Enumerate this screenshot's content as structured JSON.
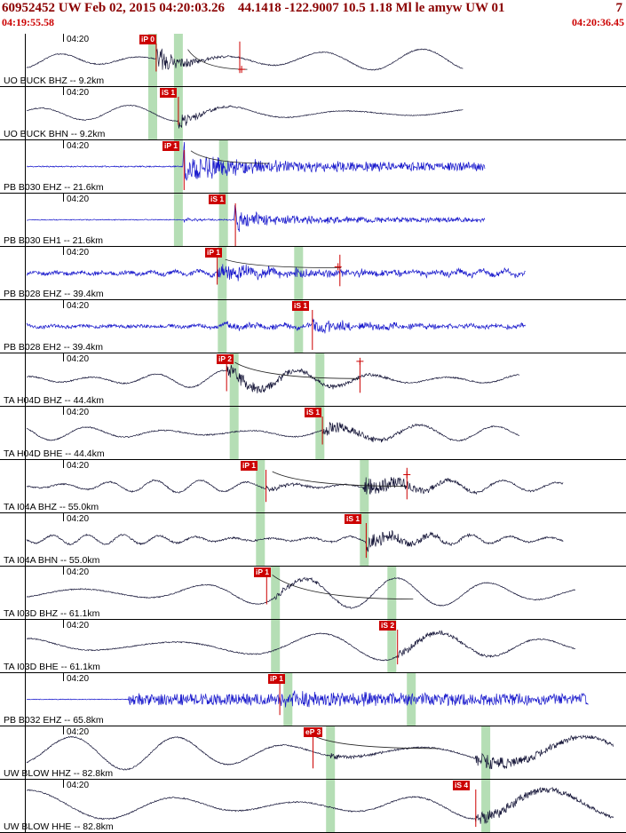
{
  "header": {
    "title": "60952452 UW Feb 02, 2015 04:20:03.26    44.1418 -122.9007 10.5 1.18 Ml le amyw UW 01",
    "right_label": "7",
    "window_start": "04:19:55.58",
    "window_end": "04:20:36.45"
  },
  "tick_label": "04:20",
  "colors": {
    "header_text": "#8b0000",
    "window_time_text": "#cc0000",
    "pick": "#cc0000",
    "band": "#a8d8a8",
    "blue_trace": "#1818cc",
    "dark_trace": "#151538"
  },
  "traces": [
    {
      "label": "UO BUCK BHZ -- 9.2km",
      "color": "dark",
      "seed": 3,
      "end": 0.74,
      "bands": [
        0.244,
        0.285
      ],
      "picks": [
        {
          "label": "iP 0",
          "x": 0.222,
          "line_x": 0.2495
        }
      ],
      "aux_line": 0.383,
      "cross": {
        "x": 0.386,
        "y": 0.68
      },
      "decay": {
        "x1": 0.3,
        "y1": 0.3,
        "x2": 0.395,
        "y2": 0.68
      },
      "wave": {
        "base": {
          "amp": 12,
          "cycles": 7,
          "mod": 1.2
        },
        "noise": 0.6,
        "bursts": [
          {
            "t": 0.2495,
            "amp": 15,
            "tau": 30
          }
        ]
      }
    },
    {
      "label": "UO BUCK BHN -- 9.2km",
      "color": "dark",
      "seed": 7,
      "end": 0.74,
      "bands": [
        0.244,
        0.285
      ],
      "picks": [
        {
          "label": "iS 1",
          "x": 0.256,
          "line_x": 0.285
        }
      ],
      "wave": {
        "base": {
          "amp": 9,
          "cycles": 6,
          "mod": 1.3
        },
        "noise": 0.5,
        "bursts": [
          {
            "t": 0.285,
            "amp": 10,
            "tau": 25
          }
        ]
      }
    },
    {
      "label": "PB B030 EHZ -- 21.6km",
      "color": "blue",
      "seed": 11,
      "end": 0.775,
      "bands": [
        0.285,
        0.357
      ],
      "picks": [
        {
          "label": "iP 1",
          "x": 0.26,
          "line_x": 0.294,
          "y2": 0.95
        }
      ],
      "decay": {
        "x1": 0.305,
        "y1": 0.2,
        "x2": 0.43,
        "y2": 0.44
      },
      "wave": {
        "noise": 0.7,
        "spikes": [
          {
            "t": 0.294,
            "amp": 26
          },
          {
            "t": 0.299,
            "amp": -22
          }
        ],
        "bursts": [
          {
            "t": 0.294,
            "amp": 14,
            "tau": 90
          }
        ],
        "sustain": [
          {
            "t": 0.3,
            "amp": 4.5
          }
        ]
      }
    },
    {
      "label": "PB B030 EH1 -- 21.6km",
      "color": "blue",
      "seed": 13,
      "end": 0.775,
      "bands": [
        0.285,
        0.357
      ],
      "picks": [
        {
          "label": "iS 1",
          "x": 0.333,
          "line_x": 0.376,
          "y2": 1.0
        }
      ],
      "wave": {
        "noise": 0.5,
        "spikes": [
          {
            "t": 0.376,
            "amp": 24
          },
          {
            "t": 0.381,
            "amp": -20
          }
        ],
        "bursts": [
          {
            "t": 0.294,
            "amp": 2.5,
            "tau": 30
          },
          {
            "t": 0.376,
            "amp": 9,
            "tau": 70
          }
        ],
        "sustain": [
          {
            "t": 0.38,
            "amp": 2.5
          }
        ]
      }
    },
    {
      "label": "PB B028 EHZ -- 39.4km",
      "color": "blue",
      "seed": 17,
      "end": 0.84,
      "bands": [
        0.355,
        0.477
      ],
      "picks": [
        {
          "label": "iP 1",
          "x": 0.328,
          "line_x": 0.347
        }
      ],
      "aux_line": 0.543,
      "cross": {
        "x": 0.54,
        "y": 0.38
      },
      "decay": {
        "x1": 0.36,
        "y1": 0.24,
        "x2": 0.545,
        "y2": 0.4
      },
      "wave": {
        "base": {
          "amp": 2.5,
          "cycles": 26,
          "mod": 2.2
        },
        "noise": 2.2,
        "bursts": [
          {
            "t": 0.347,
            "amp": 8,
            "tau": 90
          },
          {
            "t": 0.477,
            "amp": 4,
            "tau": 60
          }
        ],
        "sustain": [
          {
            "t": 0.35,
            "amp": 2
          }
        ]
      }
    },
    {
      "label": "PB B028 EH2 -- 39.4km",
      "color": "blue",
      "seed": 19,
      "end": 0.84,
      "bands": [
        0.355,
        0.477
      ],
      "picks": [
        {
          "label": "iS 1",
          "x": 0.466,
          "line_x": 0.499,
          "y2": 0.95
        }
      ],
      "wave": {
        "base": {
          "amp": 2,
          "cycles": 22,
          "mod": 2.0
        },
        "noise": 1.8,
        "bursts": [
          {
            "t": 0.355,
            "amp": 4,
            "tau": 50
          },
          {
            "t": 0.499,
            "amp": 8,
            "tau": 70
          }
        ],
        "sustain": [
          {
            "t": 0.36,
            "amp": 1.5
          }
        ]
      }
    },
    {
      "label": "TA H04D BHZ -- 44.4km",
      "color": "dark",
      "seed": 23,
      "end": 0.83,
      "bands": [
        0.374,
        0.511
      ],
      "picks": [
        {
          "label": "iP 2",
          "x": 0.346,
          "line_x": 0.362
        }
      ],
      "aux_line": 0.575,
      "cross": {
        "x": 0.575,
        "y": 0.15
      },
      "decay": {
        "x1": 0.375,
        "y1": 0.17,
        "x2": 0.575,
        "y2": 0.48
      },
      "wave": {
        "base": {
          "amp": 11,
          "cycles": 9,
          "mod": 1.6
        },
        "noise": 0.7,
        "bursts": [
          {
            "t": 0.362,
            "amp": 8,
            "tau": 60
          }
        ],
        "sustain": [
          {
            "t": 0.362,
            "amp": 1.5,
            "t2": 0.62
          }
        ]
      }
    },
    {
      "label": "TA H04D BHE -- 44.4km",
      "color": "dark",
      "seed": 29,
      "end": 0.83,
      "bands": [
        0.374,
        0.511
      ],
      "picks": [
        {
          "label": "iS 1",
          "x": 0.487,
          "line_x": 0.515
        }
      ],
      "wave": {
        "base": {
          "amp": 9,
          "cycles": 8,
          "mod": 1.4
        },
        "noise": 0.7,
        "bursts": [
          {
            "t": 0.515,
            "amp": 8,
            "tau": 55
          }
        ]
      }
    },
    {
      "label": "TA I04A BHZ -- 55.0km",
      "color": "dark",
      "seed": 31,
      "end": 0.9,
      "bands": [
        0.416,
        0.582
      ],
      "picks": [
        {
          "label": "iP 1",
          "x": 0.384,
          "line_x": 0.425,
          "y2": 0.8
        }
      ],
      "aux_line": 0.65,
      "cross": {
        "x": 0.65,
        "y": 0.28
      },
      "decay": {
        "x1": 0.435,
        "y1": 0.22,
        "x2": 0.648,
        "y2": 0.5
      },
      "wave": {
        "base": {
          "amp": 7,
          "cycles": 12,
          "mod": 2.0
        },
        "noise": 0.8,
        "bursts": [
          {
            "t": 0.425,
            "amp": 3,
            "tau": 40
          },
          {
            "t": 0.58,
            "amp": 13,
            "tau": 55
          }
        ]
      }
    },
    {
      "label": "TA I04A BHN -- 55.0km",
      "color": "dark",
      "seed": 37,
      "end": 0.9,
      "bands": [
        0.416,
        0.582
      ],
      "picks": [
        {
          "label": "iS 1",
          "x": 0.551,
          "line_x": 0.585,
          "y2": 0.85
        }
      ],
      "wave": {
        "base": {
          "amp": 5.5,
          "cycles": 16,
          "mod": 1.8
        },
        "noise": 1.0,
        "bursts": [
          {
            "t": 0.585,
            "amp": 11,
            "tau": 50
          }
        ]
      }
    },
    {
      "label": "TA I03D BHZ -- 61.1km",
      "color": "dark",
      "seed": 41,
      "end": 0.92,
      "bands": [
        0.44,
        0.626
      ],
      "picks": [
        {
          "label": "iP 1",
          "x": 0.406,
          "line_x": 0.426
        }
      ],
      "decay": {
        "x1": 0.435,
        "y1": 0.16,
        "x2": 0.66,
        "y2": 0.62
      },
      "wave": {
        "base": {
          "amp": 17,
          "cycles": 5.5,
          "mod": 1.1
        },
        "noise": 0.6,
        "bursts": [
          {
            "t": 0.44,
            "amp": 4,
            "tau": 50
          }
        ]
      }
    },
    {
      "label": "TA I03D BHE -- 61.1km",
      "color": "dark",
      "seed": 43,
      "end": 0.92,
      "bands": [
        0.44,
        0.626
      ],
      "picks": [
        {
          "label": "iS 2",
          "x": 0.605,
          "line_x": 0.635,
          "y2": 0.85
        }
      ],
      "wave": {
        "base": {
          "amp": 16,
          "cycles": 5,
          "mod": 1.2
        },
        "noise": 0.6,
        "bursts": [
          {
            "t": 0.635,
            "amp": 5,
            "tau": 60
          }
        ]
      }
    },
    {
      "label": "PB B032 EHZ -- 65.8km",
      "color": "blue",
      "seed": 47,
      "end": 0.94,
      "bands": [
        0.46,
        0.657
      ],
      "picks": [
        {
          "label": "iP 1",
          "x": 0.428,
          "line_x": 0.447,
          "y2": 0.8
        }
      ],
      "wave": {
        "noise": 0.4,
        "sustain": [
          {
            "t": 0.205,
            "amp": 6.5
          }
        ],
        "bursts": [
          {
            "t": 0.447,
            "amp": 5,
            "tau": 120
          }
        ]
      }
    },
    {
      "label": "UW BLOW HHZ -- 82.8km",
      "color": "dark",
      "seed": 53,
      "end": 0.98,
      "bands": [
        0.528,
        0.776
      ],
      "picks": [
        {
          "label": "eP 3",
          "x": 0.485,
          "line_x": 0.5,
          "y2": 0.8
        }
      ],
      "decay": {
        "x1": 0.505,
        "y1": 0.2,
        "x2": 0.7,
        "y2": 0.42
      },
      "wave": {
        "base": {
          "amp": 19,
          "cycles": 4.6,
          "mod": 1.2
        },
        "noise": 0.7,
        "bursts": [
          {
            "t": 0.528,
            "amp": 3,
            "tau": 40
          },
          {
            "t": 0.76,
            "amp": 9,
            "tau": 90
          }
        ]
      }
    },
    {
      "label": "UW BLOW HHE -- 82.8km",
      "color": "dark",
      "seed": 59,
      "end": 0.98,
      "bands": [
        0.528,
        0.776
      ],
      "picks": [
        {
          "label": "iS 4",
          "x": 0.723,
          "line_x": 0.76,
          "y2": 0.9
        }
      ],
      "wave": {
        "base": {
          "amp": 18,
          "cycles": 4.2,
          "mod": 1.1
        },
        "noise": 0.7,
        "bursts": [
          {
            "t": 0.76,
            "amp": 8,
            "tau": 90
          }
        ]
      }
    }
  ]
}
